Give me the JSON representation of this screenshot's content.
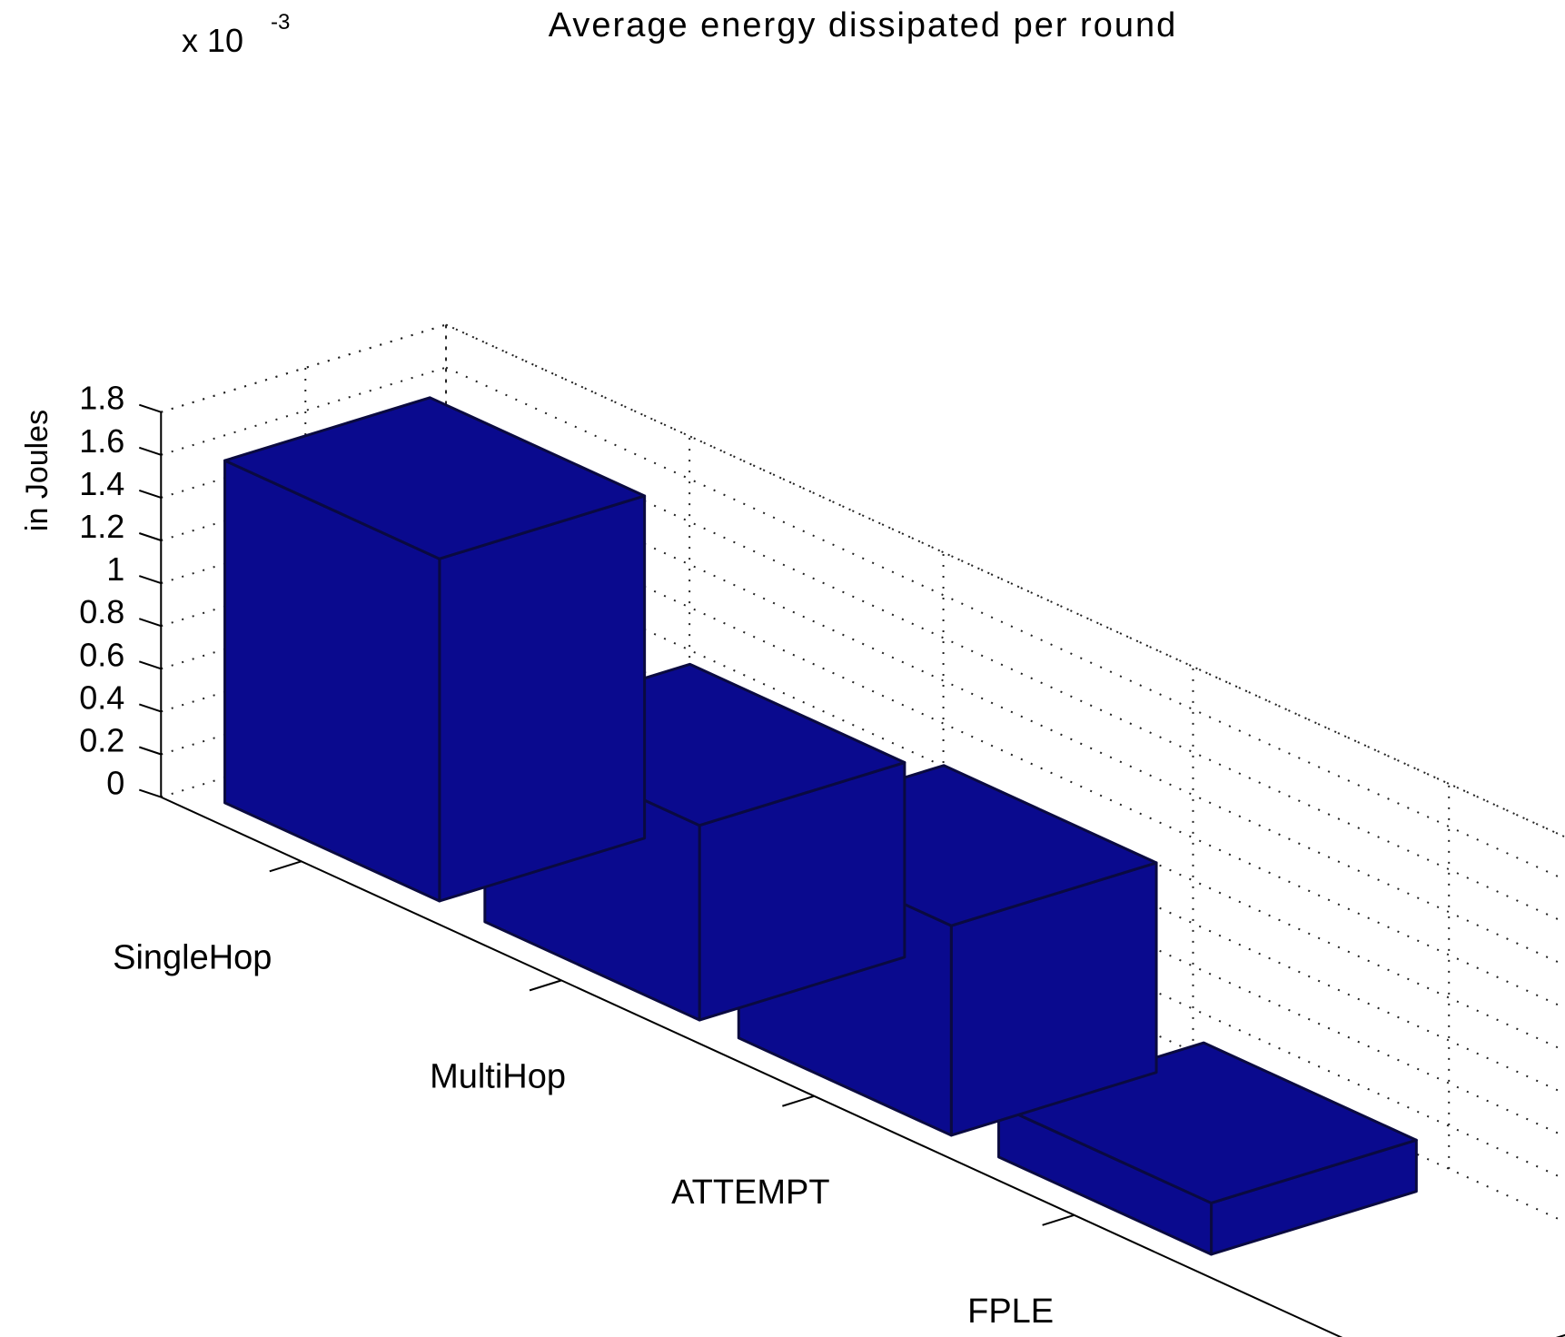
{
  "chart_data": {
    "type": "bar",
    "title": "Average energy dissipated per round",
    "ylabel": "in Joules",
    "y_multiplier": "x 10",
    "y_multiplier_exponent": "-3",
    "categories": [
      "SingleHop",
      "MultiHop",
      "ATTEMPT",
      "FPLE"
    ],
    "values": [
      1.6,
      0.91,
      0.98,
      0.24
    ],
    "ylim": [
      0,
      1.8
    ],
    "yticks": [
      "0",
      "0.2",
      "0.4",
      "0.6",
      "0.8",
      "1",
      "1.2",
      "1.4",
      "1.6",
      "1.8"
    ],
    "grid": true,
    "bar_color": "#0a0a8e",
    "bar_edge_color": "#0a0a40"
  }
}
